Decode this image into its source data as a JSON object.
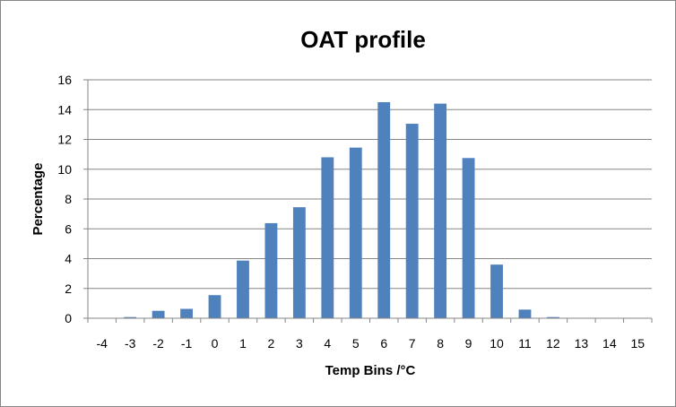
{
  "chart_data": {
    "type": "bar",
    "title": "OAT profile",
    "xlabel": "Temp Bins /°C",
    "ylabel": "Percentage",
    "categories": [
      "-4",
      "-3",
      "-2",
      "-1",
      "0",
      "1",
      "2",
      "3",
      "4",
      "5",
      "6",
      "7",
      "8",
      "9",
      "10",
      "11",
      "12",
      "13",
      "14",
      "15"
    ],
    "values": [
      0,
      0.08,
      0.5,
      0.63,
      1.55,
      3.87,
      6.38,
      7.45,
      10.8,
      11.45,
      14.5,
      13.05,
      14.4,
      10.75,
      3.6,
      0.58,
      0.08,
      0,
      0,
      0
    ],
    "ylim": [
      0,
      16
    ],
    "yticks": [
      "0",
      "2",
      "4",
      "6",
      "8",
      "10",
      "12",
      "14",
      "16"
    ],
    "grid": true,
    "legend": "none",
    "bar_color": "#4F81BD",
    "grid_color": "#868686"
  }
}
